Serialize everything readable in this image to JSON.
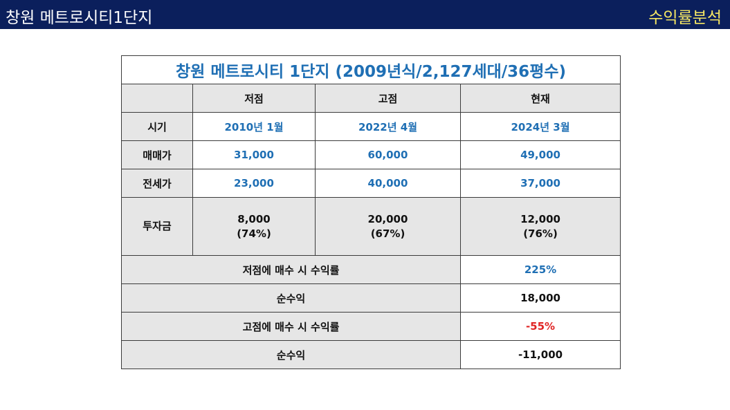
{
  "header": {
    "title": "창원 메트로시티1단지",
    "badge": "수익률분석"
  },
  "table": {
    "caption": "창원  메트로시티 1단지 (2009년식/2,127세대/36평수)",
    "columns": [
      "",
      "저점",
      "고점",
      "현재"
    ],
    "rows": [
      {
        "label": "시기",
        "values": [
          "2010년 1월",
          "2022년 4월",
          "2024년 3월"
        ]
      },
      {
        "label": "매매가",
        "values": [
          "31,000",
          "60,000",
          "49,000"
        ]
      },
      {
        "label": "전세가",
        "values": [
          "23,000",
          "40,000",
          "37,000"
        ]
      },
      {
        "label": "투자금",
        "values": [
          {
            "amount": "8,000",
            "pct": "(74%)"
          },
          {
            "amount": "20,000",
            "pct": "(67%)"
          },
          {
            "amount": "12,000",
            "pct": "(76%)"
          }
        ]
      }
    ],
    "summary": [
      {
        "label": "저점에 매수 시 수익률",
        "value": "225%",
        "color": "#1f6fb4"
      },
      {
        "label": "순수익",
        "value": "18,000",
        "color": "#111111"
      },
      {
        "label": "고점에 매수 시 수익률",
        "value": "-55%",
        "color": "#e02424"
      },
      {
        "label": "순수익",
        "value": "-11,000",
        "color": "#111111"
      }
    ]
  },
  "colors": {
    "header_bg": "#0b1f5c",
    "badge": "#f5e663",
    "accent_blue": "#1f6fb4",
    "accent_red": "#e02424",
    "cell_gray": "#e6e6e6"
  }
}
